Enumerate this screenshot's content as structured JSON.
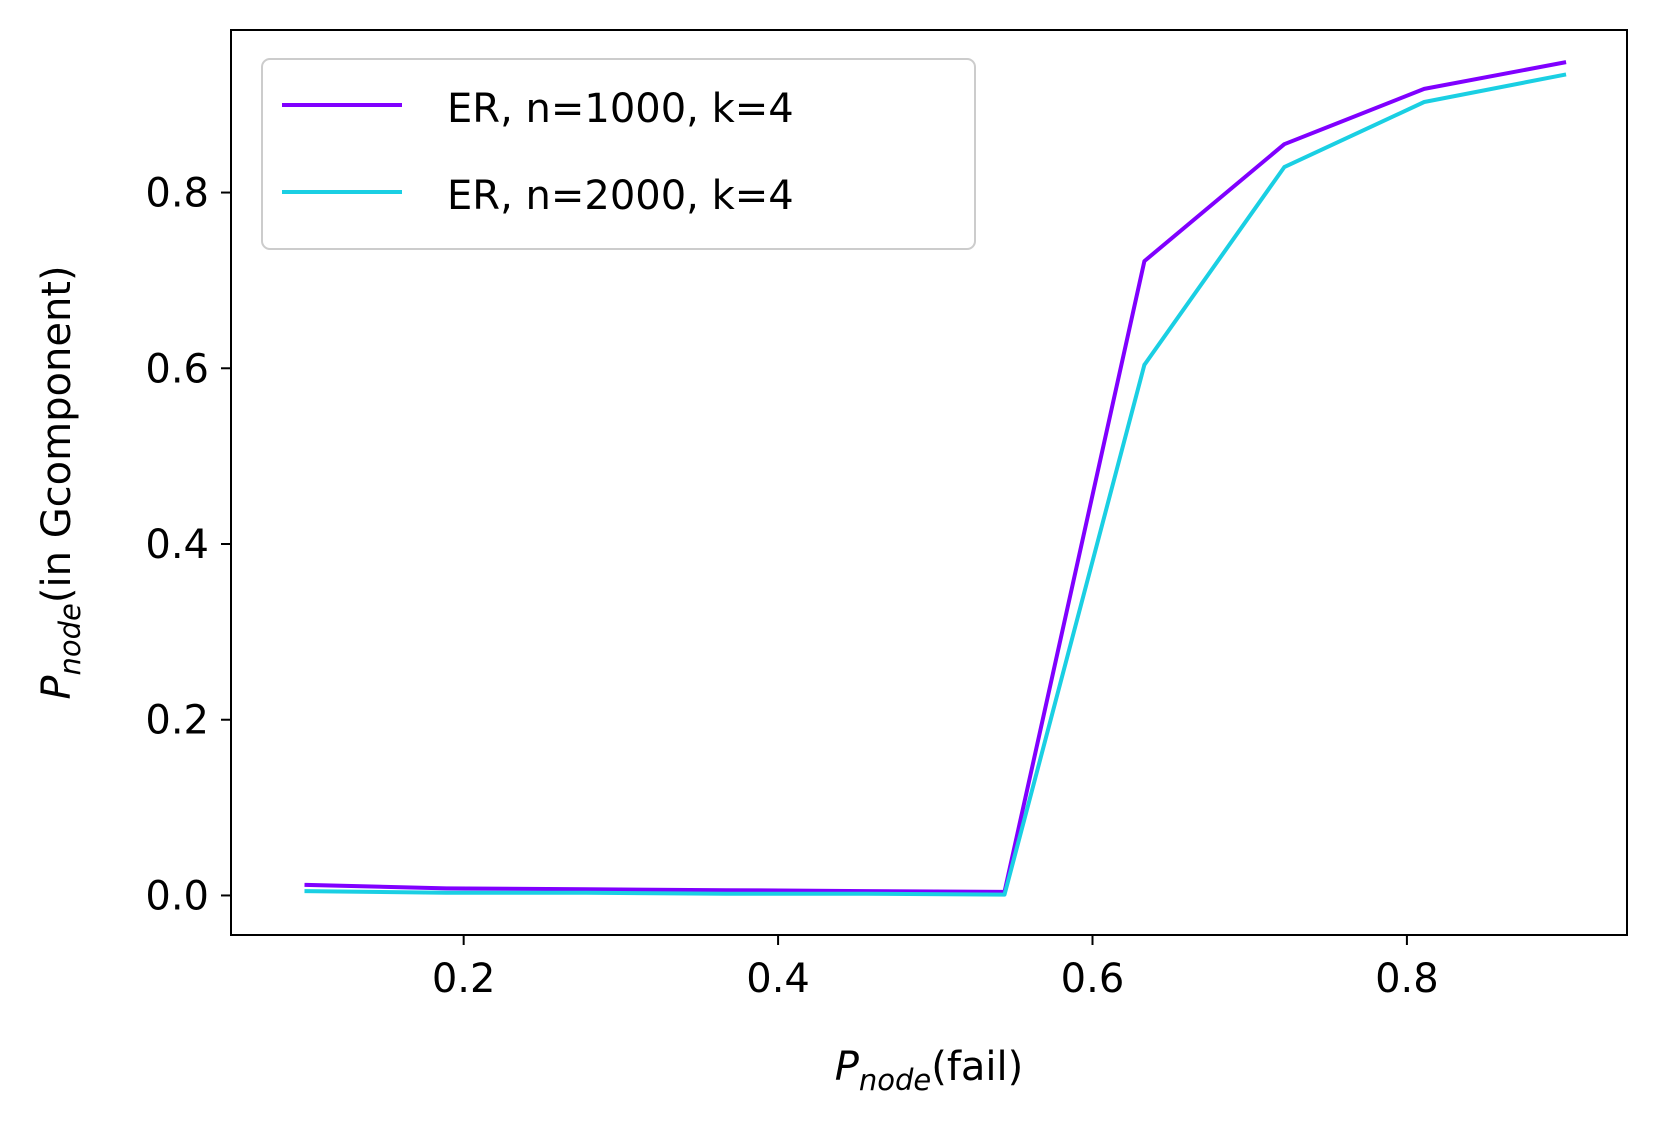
{
  "chart_data": {
    "type": "line",
    "title": "",
    "xlabel": {
      "main": "P",
      "sub": "node",
      "suffix": "(fail)"
    },
    "ylabel": {
      "main": "P",
      "sub": "node",
      "suffix": "(in Gcomponent)"
    },
    "xlim": [
      0.052,
      0.94
    ],
    "ylim": [
      -0.045,
      0.985
    ],
    "xticks": [
      0.2,
      0.4,
      0.6,
      0.8
    ],
    "xtick_labels": [
      "0.2",
      "0.4",
      "0.6",
      "0.8"
    ],
    "yticks": [
      0.0,
      0.2,
      0.4,
      0.6,
      0.8
    ],
    "ytick_labels": [
      "0.0",
      "0.2",
      "0.4",
      "0.6",
      "0.8"
    ],
    "grid": false,
    "legend_position": "top-left",
    "x": [
      0.1,
      0.189,
      0.278,
      0.367,
      0.456,
      0.544,
      0.633,
      0.722,
      0.811,
      0.9
    ],
    "series": [
      {
        "name": "ER, n=1000, k=4",
        "color": "#8000ff",
        "values": [
          0.012,
          0.008,
          0.007,
          0.006,
          0.005,
          0.004,
          0.722,
          0.855,
          0.918,
          0.948
        ]
      },
      {
        "name": "ER, n=2000, k=4",
        "color": "#1acfe3",
        "values": [
          0.005,
          0.003,
          0.003,
          0.002,
          0.002,
          0.001,
          0.604,
          0.829,
          0.903,
          0.934
        ]
      }
    ]
  }
}
